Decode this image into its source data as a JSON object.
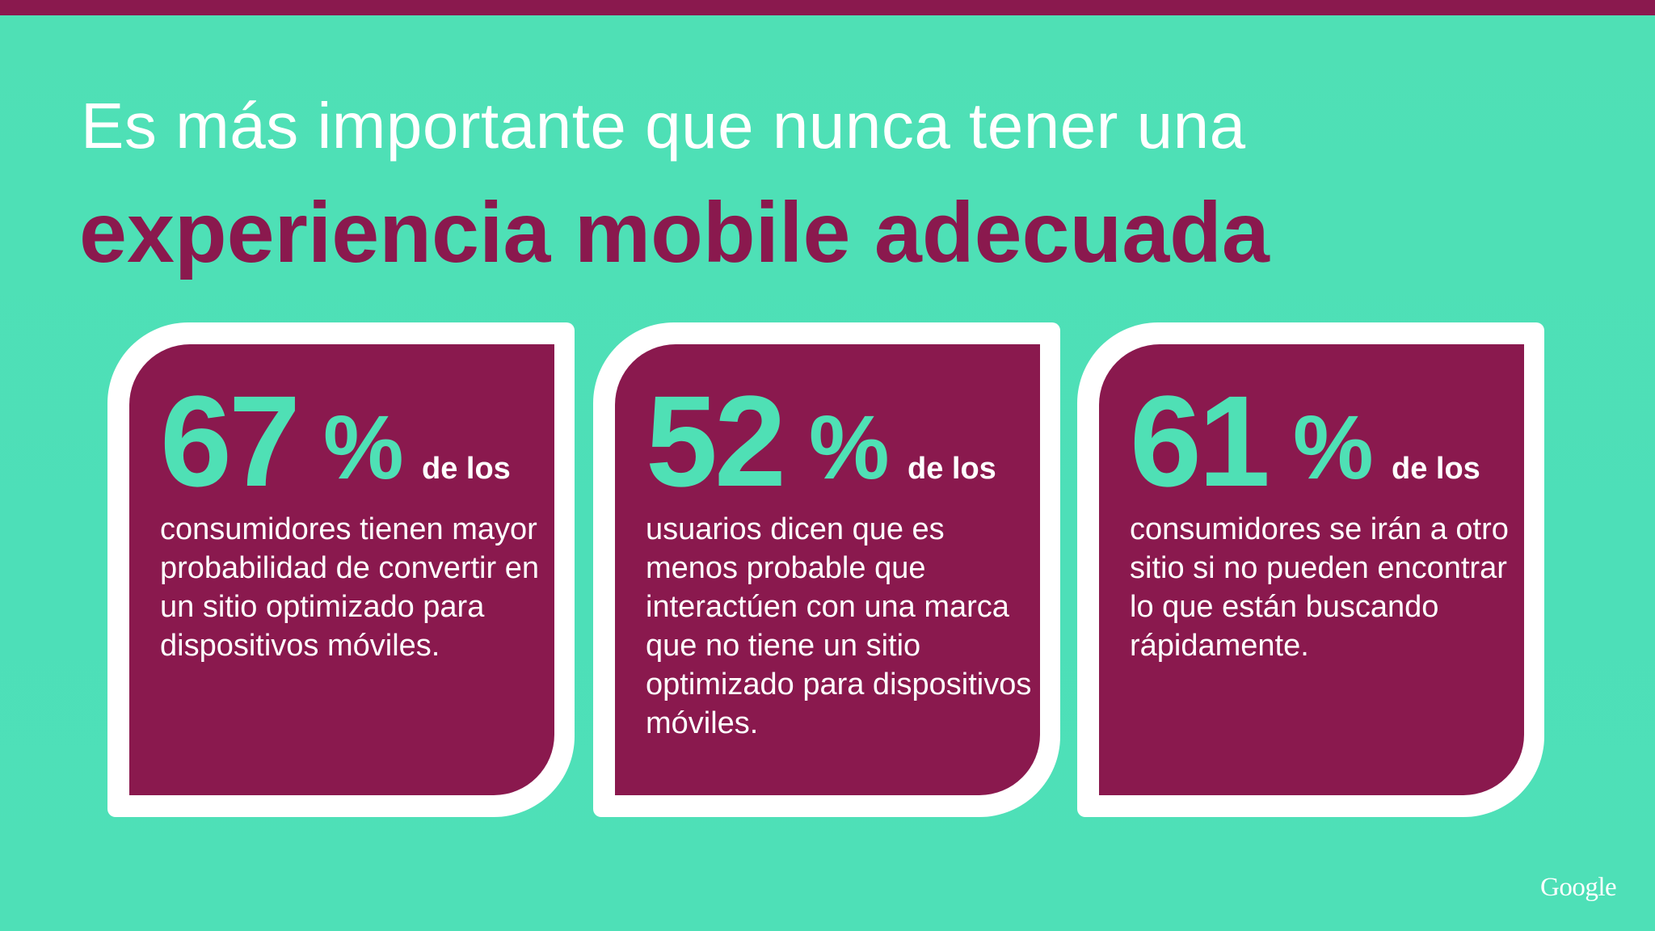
{
  "title": {
    "line1": "Es más importante que nunca tener una",
    "line2": "experiencia mobile adecuada"
  },
  "cards": [
    {
      "number": "67",
      "percent": "%",
      "lead": "de los",
      "body": "consumidores tienen mayor probabilidad de convertir en un sitio optimizado para dispositivos móviles."
    },
    {
      "number": "52",
      "percent": "%",
      "lead": "de los",
      "body": "usuarios dicen que es menos probable que interactúen con una marca que no tiene un sitio optimizado para dispositivos móviles."
    },
    {
      "number": "61",
      "percent": "%",
      "lead": "de los",
      "body": "consumidores se irán a otro sitio si no pueden encontrar lo que están buscando rápidamente."
    }
  ],
  "footer": {
    "logo": "Google"
  },
  "colors": {
    "background": "#4fe0b5",
    "accent": "#8a194e",
    "text": "#ffffff"
  }
}
